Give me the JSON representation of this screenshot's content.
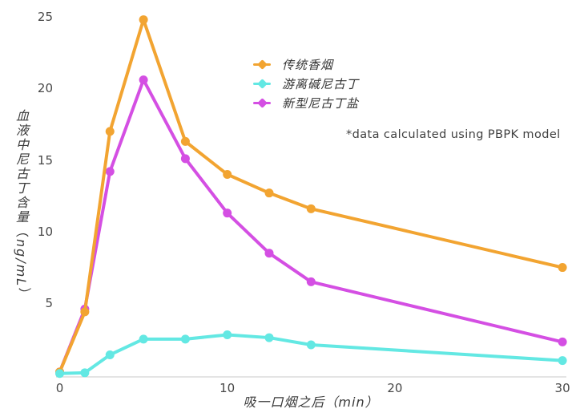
{
  "chart_data": {
    "type": "line",
    "x": [
      0,
      1.5,
      3,
      5,
      7.5,
      10,
      12.5,
      15,
      30
    ],
    "series": [
      {
        "name": "传统香烟",
        "color": "#F2A431",
        "values": [
          0.2,
          4.4,
          17.0,
          24.8,
          16.3,
          14.0,
          12.7,
          11.6,
          7.5
        ]
      },
      {
        "name": "游离碱尼古丁",
        "color": "#63E8E3",
        "values": [
          0.1,
          0.15,
          1.4,
          2.5,
          2.5,
          2.8,
          2.6,
          2.1,
          1.0
        ]
      },
      {
        "name": "新型尼古丁盐",
        "color": "#D44FE3",
        "values": [
          0.2,
          4.6,
          14.2,
          20.6,
          15.1,
          11.3,
          8.5,
          6.5,
          2.3
        ]
      }
    ],
    "title": "",
    "xlabel": "吸一口烟之后（min）",
    "ylabel": "血液中尼古丁含量（ng/mL）",
    "x_ticks": [
      0,
      10,
      20,
      30
    ],
    "y_ticks": [
      5,
      10,
      15,
      20,
      25
    ],
    "xlim": [
      0,
      30
    ],
    "ylim": [
      0,
      26
    ],
    "grid": false,
    "legend_position": "upper-left-of-center",
    "annotation": "*data calculated using PBPK model",
    "axis_line_color": "#C8C8C8",
    "tick_label_color": "#474747"
  }
}
